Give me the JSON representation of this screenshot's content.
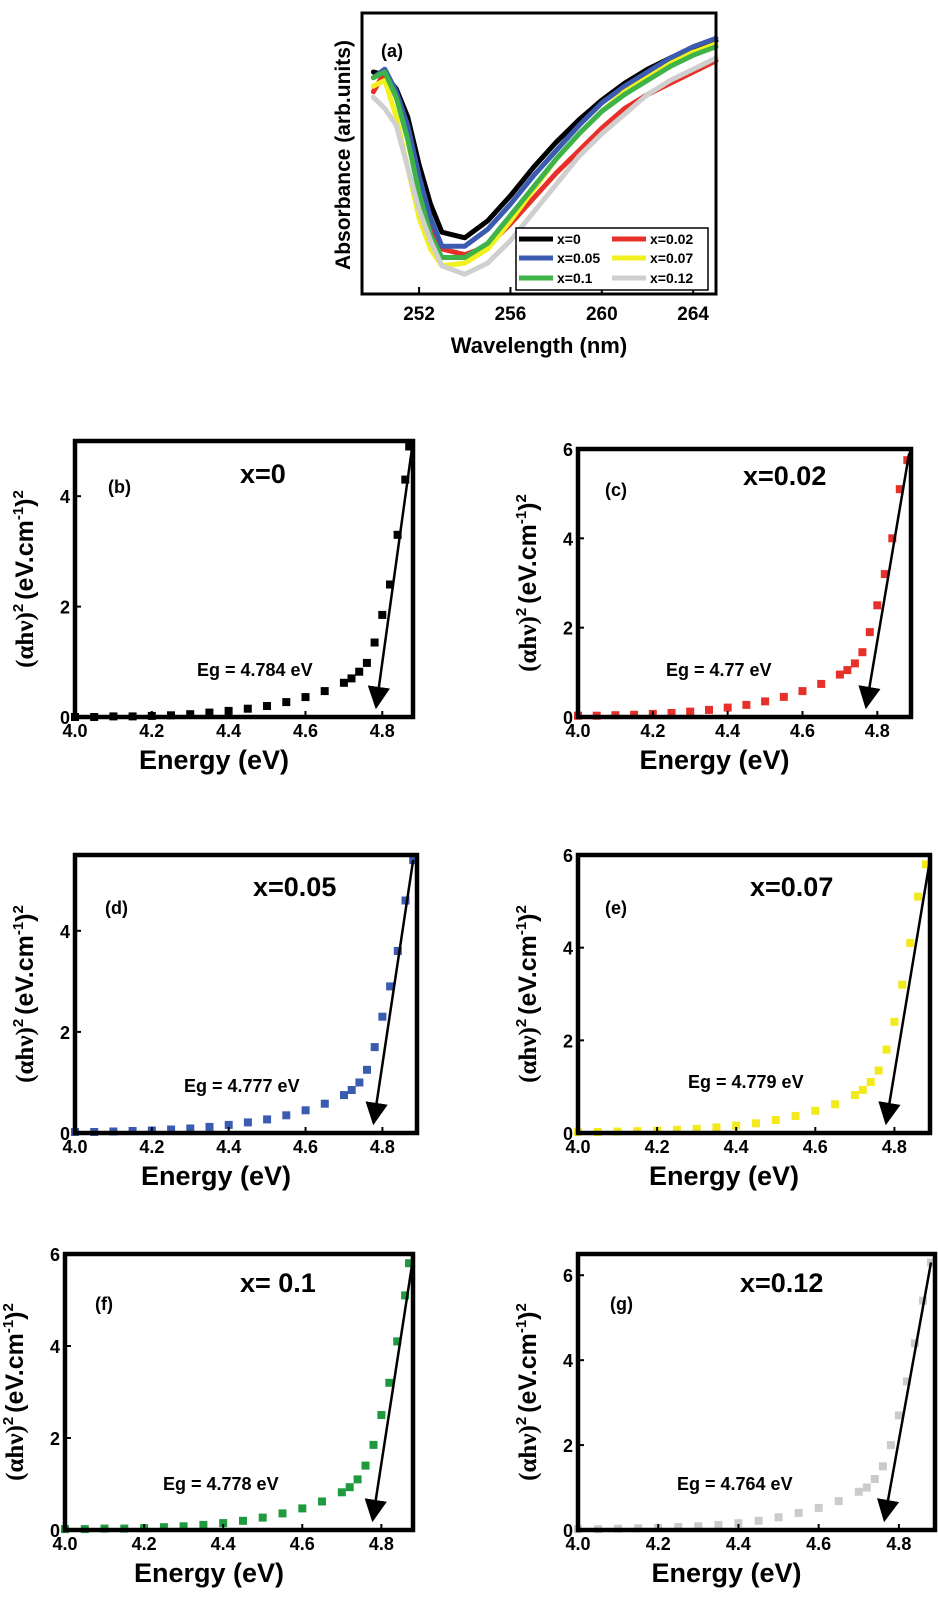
{
  "chart_data": [
    {
      "type": "line",
      "panel_label": "(a)",
      "xlabel": "Wavelength (nm)",
      "ylabel": "Absorbance (arb.units)",
      "xlim": [
        249.5,
        265
      ],
      "ylim": [
        0,
        1
      ],
      "x_ticks": [
        252,
        256,
        260,
        264
      ],
      "x_tick_labels": [
        "252",
        "256",
        "260",
        "264"
      ],
      "y_ticks_labeled": false,
      "legend_position": "bottom-right",
      "series": [
        {
          "name": "x=0",
          "color": "#000000",
          "x": [
            250,
            250.5,
            251,
            251.5,
            252,
            252.5,
            253,
            254,
            255,
            256,
            257,
            258,
            259,
            260,
            261,
            262,
            263,
            264,
            265
          ],
          "values": [
            0.79,
            0.78,
            0.73,
            0.63,
            0.46,
            0.32,
            0.22,
            0.2,
            0.26,
            0.35,
            0.45,
            0.54,
            0.62,
            0.69,
            0.75,
            0.8,
            0.84,
            0.87,
            0.9
          ]
        },
        {
          "name": "x=0.02",
          "color": "#e8302a",
          "x": [
            250,
            250.5,
            251,
            251.5,
            252,
            252.5,
            253,
            254,
            255,
            256,
            257,
            258,
            259,
            260,
            261,
            262,
            263,
            264,
            265
          ],
          "values": [
            0.72,
            0.79,
            0.7,
            0.57,
            0.38,
            0.25,
            0.16,
            0.14,
            0.17,
            0.25,
            0.34,
            0.43,
            0.51,
            0.59,
            0.66,
            0.71,
            0.75,
            0.79,
            0.83
          ]
        },
        {
          "name": "x=0.05",
          "color": "#3a5bb0",
          "x": [
            250,
            250.5,
            251,
            251.5,
            252,
            252.5,
            253,
            254,
            255,
            256,
            257,
            258,
            259,
            260,
            261,
            262,
            263,
            264,
            265
          ],
          "values": [
            0.77,
            0.8,
            0.72,
            0.6,
            0.42,
            0.27,
            0.17,
            0.17,
            0.23,
            0.32,
            0.42,
            0.51,
            0.6,
            0.68,
            0.74,
            0.79,
            0.84,
            0.88,
            0.91
          ]
        },
        {
          "name": "x=0.07",
          "color": "#f2f01e",
          "x": [
            250,
            250.5,
            251,
            251.5,
            252,
            252.5,
            253,
            254,
            255,
            256,
            257,
            258,
            259,
            260,
            261,
            262,
            263,
            264,
            265
          ],
          "values": [
            0.74,
            0.76,
            0.63,
            0.45,
            0.27,
            0.16,
            0.1,
            0.11,
            0.16,
            0.26,
            0.37,
            0.48,
            0.57,
            0.65,
            0.72,
            0.77,
            0.82,
            0.86,
            0.89
          ]
        },
        {
          "name": "x=0.1",
          "color": "#3db34a",
          "x": [
            250,
            250.5,
            251,
            251.5,
            252,
            252.5,
            253,
            254,
            255,
            256,
            257,
            258,
            259,
            260,
            261,
            262,
            263,
            264,
            265
          ],
          "values": [
            0.77,
            0.79,
            0.7,
            0.55,
            0.36,
            0.21,
            0.13,
            0.13,
            0.18,
            0.28,
            0.38,
            0.48,
            0.57,
            0.65,
            0.71,
            0.76,
            0.81,
            0.85,
            0.88
          ]
        },
        {
          "name": "x=0.12",
          "color": "#cfcfcf",
          "x": [
            250,
            250.5,
            251,
            251.5,
            252,
            252.5,
            253,
            254,
            255,
            256,
            257,
            258,
            259,
            260,
            261,
            262,
            263,
            264,
            265
          ],
          "values": [
            0.7,
            0.66,
            0.6,
            0.45,
            0.3,
            0.19,
            0.1,
            0.07,
            0.11,
            0.19,
            0.29,
            0.39,
            0.49,
            0.57,
            0.64,
            0.71,
            0.76,
            0.8,
            0.84
          ]
        }
      ]
    },
    {
      "type": "scatter",
      "panel_label": "(b)",
      "title": "x=0",
      "xlabel": "Energy (eV)",
      "ylabel_main": "(αhν)",
      "ylabel_unit": "(eV.cm",
      "sup2": "2",
      "sup_m1": "-1",
      "xlim": [
        4.0,
        4.88
      ],
      "ylim": [
        0,
        5
      ],
      "x_ticks": [
        4.0,
        4.2,
        4.4,
        4.6,
        4.8
      ],
      "x_tick_labels": [
        "4.0",
        "4.2",
        "4.4",
        "4.6",
        "4.8"
      ],
      "y_ticks": [
        0,
        2,
        4
      ],
      "y_tick_labels": [
        "0",
        "2",
        "4"
      ],
      "marker_color": "#000000",
      "annotation": "Eg = 4.784 eV",
      "eg": 4.784,
      "fit_top": [
        4.88,
        5.0
      ],
      "x": [
        4.0,
        4.05,
        4.1,
        4.15,
        4.2,
        4.25,
        4.3,
        4.35,
        4.4,
        4.45,
        4.5,
        4.55,
        4.6,
        4.65,
        4.7,
        4.72,
        4.74,
        4.76,
        4.78,
        4.8,
        4.82,
        4.84,
        4.86,
        4.87
      ],
      "values": [
        0,
        0,
        0.01,
        0.01,
        0.02,
        0.03,
        0.05,
        0.08,
        0.11,
        0.15,
        0.2,
        0.27,
        0.36,
        0.47,
        0.62,
        0.7,
        0.82,
        0.98,
        1.35,
        1.85,
        2.4,
        3.3,
        4.3,
        4.9
      ]
    },
    {
      "type": "scatter",
      "panel_label": "(c)",
      "title": "x=0.02",
      "xlabel": "Energy (eV)",
      "ylabel_main": "(αhν)",
      "ylabel_unit": "(eV.cm",
      "sup2": "2",
      "sup_m1": "-1",
      "xlim": [
        4.0,
        4.89
      ],
      "ylim": [
        0,
        6
      ],
      "x_ticks": [
        4.0,
        4.2,
        4.4,
        4.6,
        4.8
      ],
      "x_tick_labels": [
        "4.0",
        "4.2",
        "4.4",
        "4.6",
        "4.8"
      ],
      "y_ticks": [
        0,
        2,
        4,
        6
      ],
      "y_tick_labels": [
        "0",
        "2",
        "4",
        "6"
      ],
      "marker_color": "#e8302a",
      "annotation": "Eg = 4.77 eV",
      "eg": 4.77,
      "fit_top": [
        4.885,
        5.9
      ],
      "x": [
        4.0,
        4.05,
        4.1,
        4.15,
        4.2,
        4.25,
        4.3,
        4.35,
        4.4,
        4.45,
        4.5,
        4.55,
        4.6,
        4.65,
        4.7,
        4.72,
        4.74,
        4.76,
        4.78,
        4.8,
        4.82,
        4.84,
        4.86,
        4.88
      ],
      "values": [
        0.03,
        0.03,
        0.04,
        0.05,
        0.07,
        0.09,
        0.12,
        0.16,
        0.21,
        0.27,
        0.35,
        0.45,
        0.58,
        0.74,
        0.95,
        1.05,
        1.2,
        1.45,
        1.9,
        2.5,
        3.2,
        4.0,
        5.1,
        5.75
      ]
    },
    {
      "type": "scatter",
      "panel_label": "(d)",
      "title": "x=0.05",
      "xlabel": "Energy (eV)",
      "ylabel_main": "(αhν)",
      "ylabel_unit": "(eV.cm",
      "sup2": "2",
      "sup_m1": "-1",
      "xlim": [
        4.0,
        4.89
      ],
      "ylim": [
        0,
        5.5
      ],
      "x_ticks": [
        4.0,
        4.2,
        4.4,
        4.6,
        4.8
      ],
      "x_tick_labels": [
        "4.0",
        "4.2",
        "4.4",
        "4.6",
        "4.8"
      ],
      "y_ticks": [
        0,
        2,
        4
      ],
      "y_tick_labels": [
        "0",
        "2",
        "4"
      ],
      "marker_color": "#3a5bb0",
      "annotation": "Eg = 4.777 eV",
      "eg": 4.777,
      "fit_top": [
        4.88,
        5.4
      ],
      "x": [
        4.0,
        4.05,
        4.1,
        4.15,
        4.2,
        4.25,
        4.3,
        4.35,
        4.4,
        4.45,
        4.5,
        4.55,
        4.6,
        4.65,
        4.7,
        4.72,
        4.74,
        4.76,
        4.78,
        4.8,
        4.82,
        4.84,
        4.86,
        4.88
      ],
      "values": [
        0.02,
        0.02,
        0.03,
        0.04,
        0.05,
        0.07,
        0.09,
        0.12,
        0.16,
        0.21,
        0.27,
        0.35,
        0.45,
        0.58,
        0.75,
        0.85,
        1.0,
        1.25,
        1.7,
        2.3,
        2.9,
        3.6,
        4.6,
        5.4
      ]
    },
    {
      "type": "scatter",
      "panel_label": "(e)",
      "title": "x=0.07",
      "xlabel": "Energy (eV)",
      "ylabel_main": "(αhν)",
      "ylabel_unit": "(eV.cm",
      "sup2": "2",
      "sup_m1": "-1",
      "xlim": [
        4.0,
        4.89
      ],
      "ylim": [
        0,
        6
      ],
      "x_ticks": [
        4.0,
        4.2,
        4.4,
        4.6,
        4.8
      ],
      "x_tick_labels": [
        "4.0",
        "4.2",
        "4.4",
        "4.6",
        "4.8"
      ],
      "y_ticks": [
        0,
        2,
        4,
        6
      ],
      "y_tick_labels": [
        "0",
        "2",
        "4",
        "6"
      ],
      "marker_color": "#f2ea1c",
      "annotation": "Eg = 4.779 eV",
      "eg": 4.779,
      "fit_top": [
        4.89,
        5.9
      ],
      "x": [
        4.0,
        4.05,
        4.1,
        4.15,
        4.2,
        4.25,
        4.3,
        4.35,
        4.4,
        4.45,
        4.5,
        4.55,
        4.6,
        4.65,
        4.7,
        4.72,
        4.74,
        4.76,
        4.78,
        4.8,
        4.82,
        4.84,
        4.86,
        4.88
      ],
      "values": [
        0.02,
        0.02,
        0.03,
        0.04,
        0.05,
        0.07,
        0.09,
        0.12,
        0.16,
        0.21,
        0.28,
        0.37,
        0.48,
        0.62,
        0.82,
        0.93,
        1.1,
        1.35,
        1.8,
        2.4,
        3.2,
        4.1,
        5.1,
        5.8
      ]
    },
    {
      "type": "scatter",
      "panel_label": "(f)",
      "title": "x= 0.1",
      "xlabel": "Energy (eV)",
      "ylabel_main": "(αhν)",
      "ylabel_unit": "(eV.cm",
      "sup2": "2",
      "sup_m1": "-1",
      "xlim": [
        4.0,
        4.88
      ],
      "ylim": [
        0,
        6
      ],
      "x_ticks": [
        4.0,
        4.2,
        4.4,
        4.6,
        4.8
      ],
      "x_tick_labels": [
        "4.0",
        "4.2",
        "4.4",
        "4.6",
        "4.8"
      ],
      "y_ticks": [
        0,
        2,
        4,
        6
      ],
      "y_tick_labels": [
        "0",
        "2",
        "4",
        "6"
      ],
      "marker_color": "#1f9a3f",
      "annotation": "Eg = 4.778 eV",
      "eg": 4.778,
      "fit_top": [
        4.88,
        5.9
      ],
      "x": [
        4.0,
        4.05,
        4.1,
        4.15,
        4.2,
        4.25,
        4.3,
        4.35,
        4.4,
        4.45,
        4.5,
        4.55,
        4.6,
        4.65,
        4.7,
        4.72,
        4.74,
        4.76,
        4.78,
        4.8,
        4.82,
        4.84,
        4.86,
        4.87
      ],
      "values": [
        0.02,
        0.02,
        0.03,
        0.03,
        0.04,
        0.06,
        0.08,
        0.11,
        0.15,
        0.2,
        0.27,
        0.36,
        0.47,
        0.62,
        0.82,
        0.93,
        1.1,
        1.4,
        1.85,
        2.5,
        3.2,
        4.1,
        5.1,
        5.8
      ]
    },
    {
      "type": "scatter",
      "panel_label": "(g)",
      "title": "x=0.12",
      "xlabel": "Energy (eV)",
      "ylabel_main": "(αhν)",
      "ylabel_unit": "(eV.cm",
      "sup2": "2",
      "sup_m1": "-1",
      "xlim": [
        4.0,
        4.89
      ],
      "ylim": [
        0,
        6.5
      ],
      "x_ticks": [
        4.0,
        4.2,
        4.4,
        4.6,
        4.8
      ],
      "x_tick_labels": [
        "4.0",
        "4.2",
        "4.4",
        "4.6",
        "4.8"
      ],
      "y_ticks": [
        0,
        2,
        4,
        6
      ],
      "y_tick_labels": [
        "0",
        "2",
        "4",
        "6"
      ],
      "marker_color": "#cbcbcb",
      "annotation": "Eg = 4.764 eV",
      "eg": 4.764,
      "fit_top": [
        4.88,
        6.3
      ],
      "x": [
        4.0,
        4.05,
        4.1,
        4.15,
        4.2,
        4.25,
        4.3,
        4.35,
        4.4,
        4.45,
        4.5,
        4.55,
        4.6,
        4.65,
        4.7,
        4.72,
        4.74,
        4.76,
        4.78,
        4.8,
        4.82,
        4.84,
        4.86,
        4.88
      ],
      "values": [
        0.02,
        0.02,
        0.03,
        0.04,
        0.05,
        0.07,
        0.09,
        0.12,
        0.16,
        0.22,
        0.3,
        0.4,
        0.52,
        0.68,
        0.9,
        1.0,
        1.2,
        1.5,
        2.0,
        2.7,
        3.5,
        4.4,
        5.4,
        6.3
      ]
    }
  ]
}
